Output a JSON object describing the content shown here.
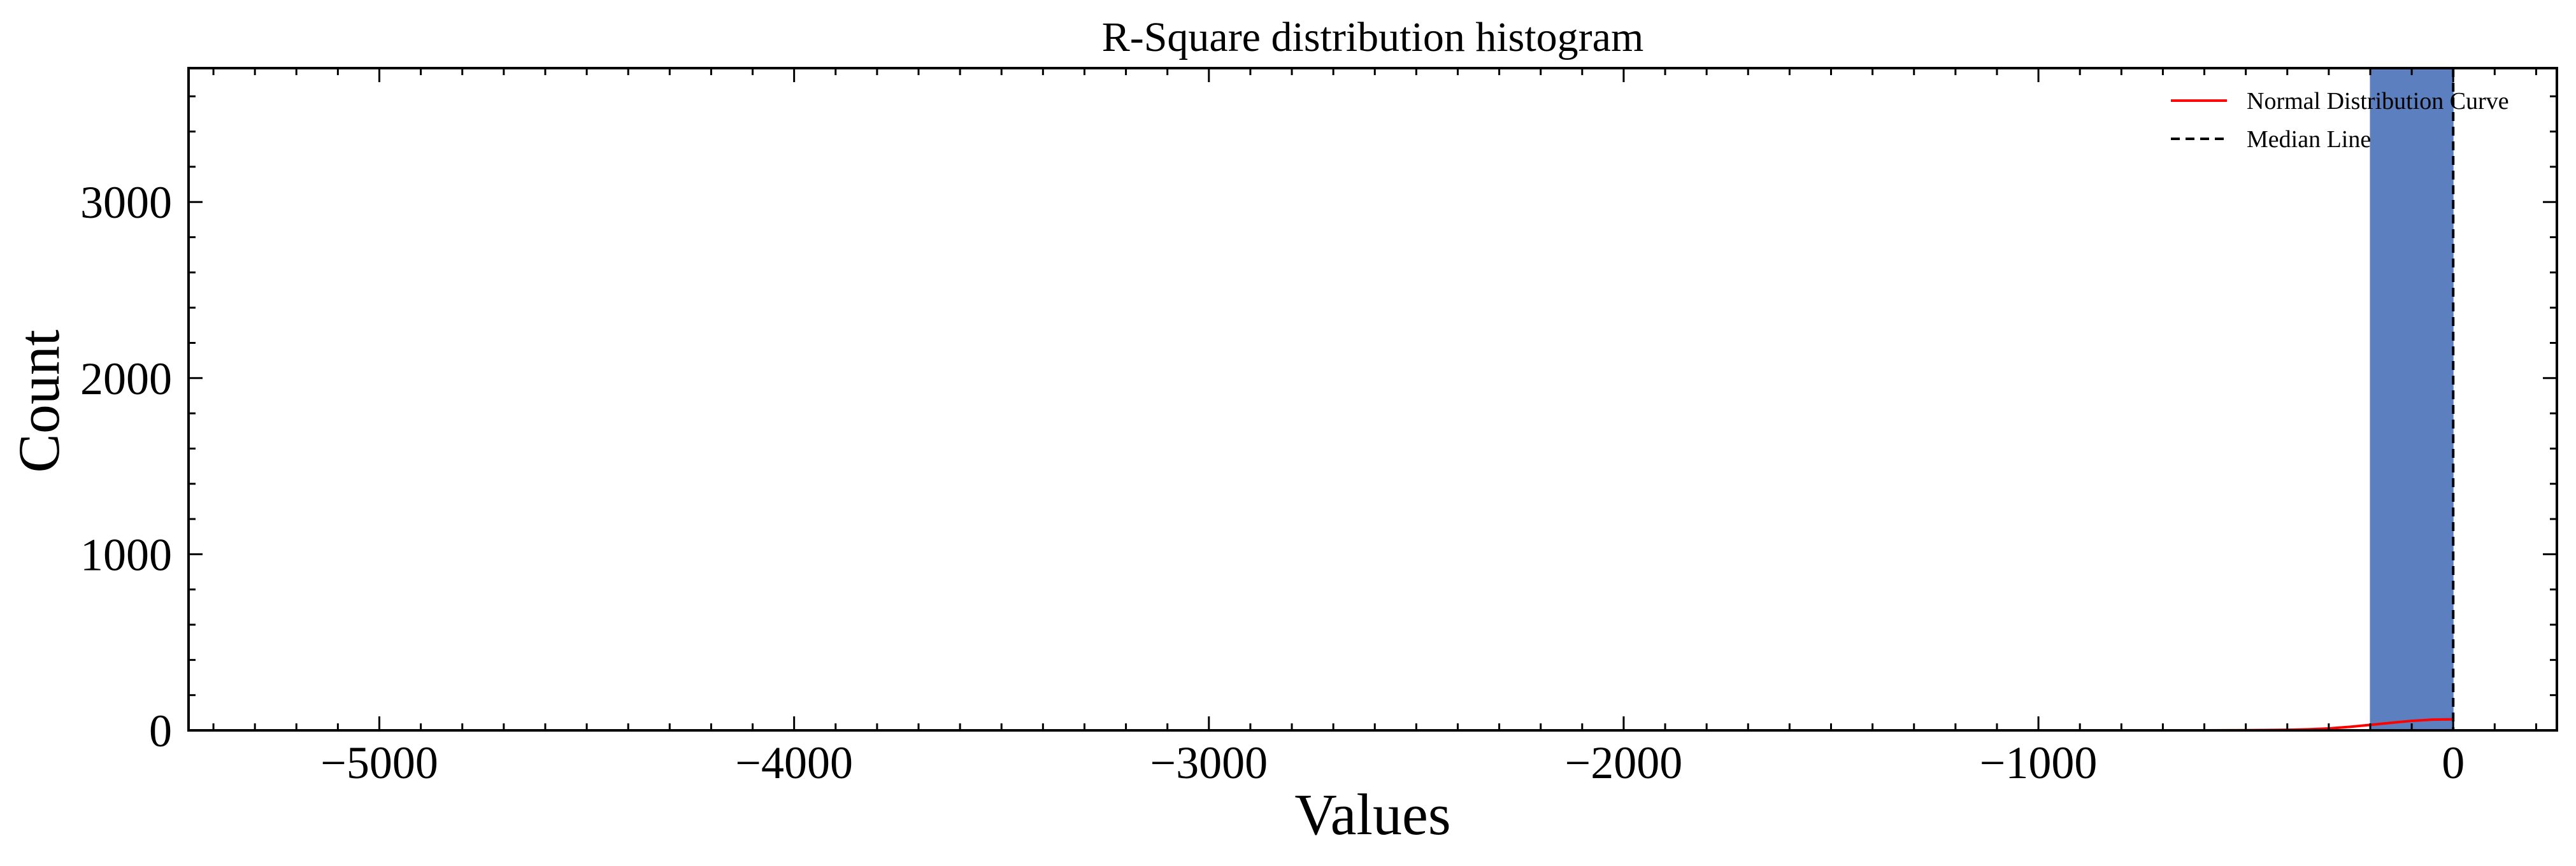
{
  "chart_data": {
    "type": "bar",
    "title": "R-Square distribution histogram",
    "xlabel": "Values",
    "ylabel": "Count",
    "xlim": [
      -5460,
      250
    ],
    "ylim": [
      0,
      3760
    ],
    "xticks": [
      -5000,
      -4000,
      -3000,
      -2000,
      -1000,
      0
    ],
    "xtick_labels": [
      "−5000",
      "−4000",
      "−3000",
      "−2000",
      "−1000",
      "0"
    ],
    "yticks": [
      0,
      1000,
      2000,
      3000
    ],
    "ytick_labels": [
      "0",
      "1000",
      "2000",
      "3000"
    ],
    "grid": false,
    "legend_position": "top-right",
    "histogram": {
      "bins": [
        {
          "x0": -5400,
          "x1": -3000,
          "count": 0
        },
        {
          "x0": -3000,
          "x1": -200,
          "count": 0
        },
        {
          "x0": -200,
          "x1": 0,
          "count": 3760
        }
      ]
    },
    "median": 0,
    "normal_curve": {
      "x": [
        -600,
        -500,
        -400,
        -350,
        -300,
        -250,
        -200,
        -150,
        -100,
        -50,
        0
      ],
      "y": [
        0,
        1,
        3,
        6,
        11,
        20,
        31,
        43,
        54,
        61,
        63
      ]
    },
    "legend": [
      {
        "label": "Normal Distribution Curve",
        "color": "#ff0000",
        "style": "solid"
      },
      {
        "label": "Median Line",
        "color": "#000000",
        "style": "dashed"
      }
    ],
    "colors": {
      "curve": "#ff0000",
      "median": "#000000",
      "bars": "#5b7fbf",
      "axis": "#000000"
    }
  }
}
